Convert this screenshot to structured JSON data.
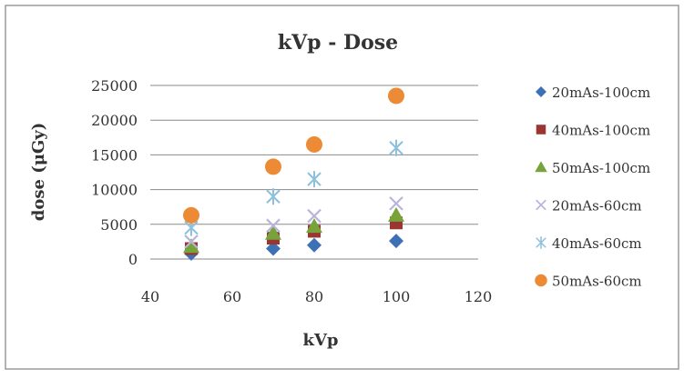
{
  "chart_data": {
    "type": "scatter",
    "title": "kVp - Dose",
    "xlabel": "kVp",
    "ylabel": "dose (μGy)",
    "xlim": [
      40,
      120
    ],
    "ylim": [
      0,
      25000
    ],
    "xticks": [
      40,
      60,
      80,
      100,
      120
    ],
    "yticks": [
      0,
      5000,
      10000,
      15000,
      20000,
      25000
    ],
    "grid": "horizontal",
    "legend_position": "right",
    "series": [
      {
        "name": "20mAs-100cm",
        "marker": "diamond",
        "color": "#3e70b5",
        "x": [
          50,
          70,
          80,
          100
        ],
        "y": [
          800,
          1500,
          2000,
          2600
        ]
      },
      {
        "name": "40mAs-100cm",
        "marker": "square",
        "color": "#9a3532",
        "x": [
          50,
          70,
          80,
          100
        ],
        "y": [
          1500,
          3000,
          4000,
          5200
        ]
      },
      {
        "name": "50mAs-100cm",
        "marker": "triangle",
        "color": "#77a33a",
        "x": [
          50,
          70,
          80,
          100
        ],
        "y": [
          1800,
          3700,
          4700,
          6300
        ]
      },
      {
        "name": "20mAs-60cm",
        "marker": "x",
        "color": "#b9b3d8",
        "x": [
          50,
          70,
          80,
          100
        ],
        "y": [
          2500,
          4800,
          6200,
          8000
        ]
      },
      {
        "name": "40mAs-60cm",
        "marker": "star",
        "color": "#8cc0dc",
        "x": [
          50,
          70,
          80,
          100
        ],
        "y": [
          4500,
          9000,
          11500,
          16000
        ]
      },
      {
        "name": "50mAs-60cm",
        "marker": "circle",
        "color": "#ec8a35",
        "x": [
          50,
          70,
          80,
          100
        ],
        "y": [
          6300,
          13300,
          16500,
          23500
        ]
      }
    ]
  }
}
